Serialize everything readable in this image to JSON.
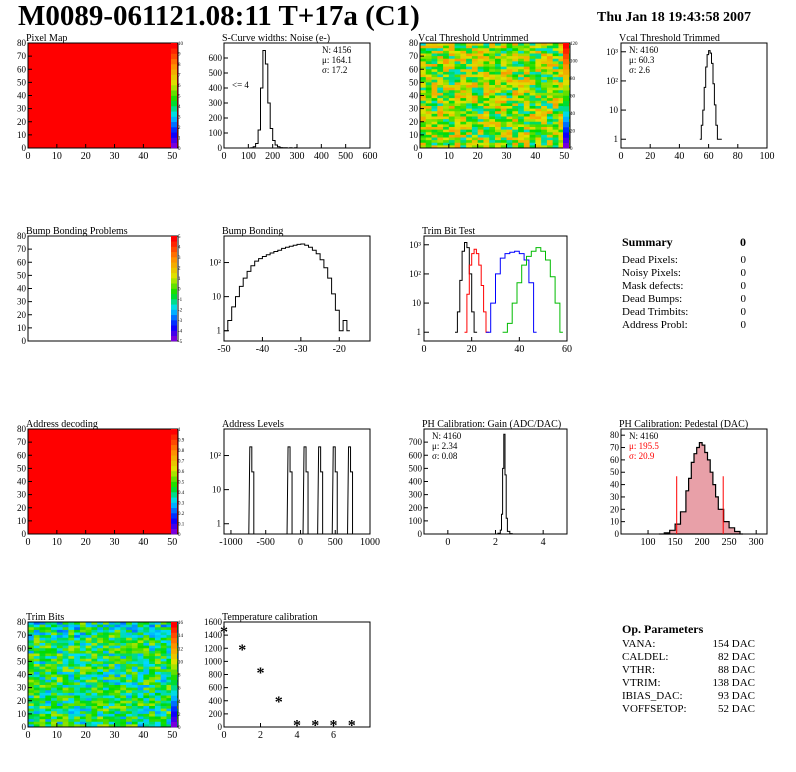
{
  "header": {
    "title": "M0089-061121.08:11 T+17a (C1)",
    "date": "Thu Jan 18 19:43:58 2007"
  },
  "colors": {
    "red": "#ff0000",
    "black": "#000000",
    "blue": "#0000ff",
    "green": "#00bb00",
    "pedestalFill": "#e8a0a8"
  },
  "chart_data": [
    {
      "id": "pixel-map",
      "type": "heatmap",
      "title": "Pixel Map",
      "xlim": [
        0,
        52
      ],
      "ylim": [
        0,
        80
      ],
      "xticks": [
        "0",
        "10",
        "20",
        "30",
        "40",
        "50"
      ],
      "yticks": [
        "0",
        "10",
        "20",
        "30",
        "40",
        "50",
        "60",
        "70",
        "80"
      ],
      "zticks": [
        "0",
        "1",
        "2",
        "3",
        "4",
        "5",
        "6",
        "7",
        "8",
        "9",
        "10"
      ],
      "fill": "uniform-max"
    },
    {
      "id": "scurve-noise",
      "type": "line",
      "title": "S-Curve widths: Noise (e-)",
      "xlim": [
        0,
        600
      ],
      "ylim": [
        0,
        700
      ],
      "xticks": [
        "0",
        "100",
        "200",
        "300",
        "400",
        "500",
        "600"
      ],
      "yticks": [
        "0",
        "100",
        "200",
        "300",
        "400",
        "500",
        "600"
      ],
      "stats": [
        "N: 4156",
        "μ: 164.1",
        "σ: 17.2"
      ],
      "annotation": "<= 4",
      "x": [
        100,
        110,
        120,
        130,
        140,
        150,
        160,
        170,
        180,
        190,
        200,
        210,
        220,
        230,
        240,
        250,
        260,
        270,
        280,
        290,
        300
      ],
      "y": [
        0,
        2,
        8,
        30,
        120,
        400,
        650,
        560,
        300,
        130,
        50,
        20,
        8,
        3,
        2,
        1,
        0,
        1,
        0,
        1,
        0
      ]
    },
    {
      "id": "vcal-untrimmed",
      "type": "heatmap",
      "title": "Vcal Threshold Untrimmed",
      "xlim": [
        0,
        52
      ],
      "ylim": [
        0,
        80
      ],
      "xticks": [
        "0",
        "10",
        "20",
        "30",
        "40",
        "50"
      ],
      "yticks": [
        "0",
        "10",
        "20",
        "30",
        "40",
        "50",
        "60",
        "70",
        "80"
      ],
      "zticks": [
        "0",
        "20",
        "40",
        "60",
        "80",
        "100",
        "120"
      ],
      "fill": "noise-around-70"
    },
    {
      "id": "vcal-trimmed",
      "type": "line",
      "title": "Vcal Threshold Trimmed",
      "log_y": true,
      "xlim": [
        0,
        100
      ],
      "ylim": [
        0.5,
        2000
      ],
      "xticks": [
        "0",
        "20",
        "40",
        "60",
        "80",
        "100"
      ],
      "yticks": [
        "1",
        "10",
        "10²",
        "10³"
      ],
      "stats": [
        "N: 4160",
        "μ: 60.3",
        "σ:  2.6"
      ],
      "x": [
        54,
        55,
        56,
        57,
        58,
        59,
        60,
        61,
        62,
        63,
        64,
        65,
        66,
        67
      ],
      "y": [
        1,
        3,
        10,
        60,
        300,
        800,
        1100,
        900,
        400,
        80,
        15,
        3,
        1,
        1
      ]
    },
    {
      "id": "bump-problems",
      "type": "heatmap",
      "title": "Bump Bonding Problems",
      "xlim": [
        0,
        52
      ],
      "ylim": [
        0,
        80
      ],
      "xticks": [],
      "yticks": [
        "0",
        "10",
        "20",
        "30",
        "40",
        "50",
        "60",
        "70",
        "80"
      ],
      "zticks": [
        "-5",
        "-4",
        "-3",
        "-2",
        "-1",
        "0",
        "1",
        "2",
        "3",
        "4",
        "5"
      ],
      "fill": "empty"
    },
    {
      "id": "bump-bonding",
      "type": "line",
      "title": "Bump Bonding",
      "log_y": true,
      "xlim": [
        -50,
        -12
      ],
      "ylim": [
        0.5,
        600
      ],
      "xticks": [
        "-50",
        "-40",
        "-30",
        "-20"
      ],
      "yticks": [
        "1",
        "10",
        "10²"
      ],
      "x": [
        -50,
        -49,
        -48,
        -47,
        -46,
        -45,
        -44,
        -43,
        -42,
        -41,
        -40,
        -39,
        -38,
        -37,
        -36,
        -35,
        -34,
        -33,
        -32,
        -31,
        -30,
        -29,
        -28,
        -27,
        -26,
        -25,
        -24,
        -23,
        -22,
        -21,
        -20,
        -19,
        -18
      ],
      "y": [
        1,
        2,
        5,
        10,
        20,
        35,
        55,
        80,
        110,
        130,
        150,
        170,
        190,
        210,
        230,
        260,
        280,
        300,
        320,
        340,
        350,
        320,
        280,
        230,
        180,
        120,
        70,
        35,
        12,
        4,
        1,
        2,
        1
      ]
    },
    {
      "id": "trim-bit-test",
      "type": "line",
      "title": "Trim Bit Test",
      "log_y": true,
      "xlim": [
        0,
        60
      ],
      "ylim": [
        0.5,
        2000
      ],
      "xticks": [
        "0",
        "20",
        "40",
        "60"
      ],
      "yticks": [
        "1",
        "10",
        "10²",
        "10³"
      ],
      "series": [
        {
          "color": "#000000",
          "x": [
            13,
            14,
            15,
            16,
            17,
            18,
            19,
            20,
            21
          ],
          "y": [
            1,
            5,
            60,
            600,
            1200,
            800,
            100,
            5,
            1
          ]
        },
        {
          "color": "#ff0000",
          "x": [
            17,
            18,
            19,
            20,
            21,
            22,
            23,
            24,
            25,
            26
          ],
          "y": [
            1,
            20,
            200,
            500,
            700,
            500,
            200,
            40,
            5,
            1
          ]
        },
        {
          "color": "#0000ff",
          "x": [
            26,
            28,
            30,
            32,
            34,
            36,
            38,
            40,
            42,
            44,
            46
          ],
          "y": [
            1,
            10,
            100,
            350,
            500,
            550,
            600,
            500,
            300,
            50,
            1
          ]
        },
        {
          "color": "#00bb00",
          "x": [
            33,
            35,
            37,
            39,
            41,
            43,
            45,
            47,
            49,
            51,
            53,
            55,
            57
          ],
          "y": [
            1,
            2,
            10,
            50,
            200,
            400,
            600,
            800,
            600,
            300,
            80,
            10,
            1
          ]
        }
      ]
    },
    {
      "id": "address-decoding",
      "type": "heatmap",
      "title": "Address decoding",
      "xlim": [
        0,
        52
      ],
      "ylim": [
        0,
        80
      ],
      "xticks": [
        "0",
        "10",
        "20",
        "30",
        "40",
        "50"
      ],
      "yticks": [
        "0",
        "10",
        "20",
        "30",
        "40",
        "50",
        "60",
        "70",
        "80"
      ],
      "zticks": [
        "0",
        "0.1",
        "0.2",
        "0.3",
        "0.4",
        "0.5",
        "0.6",
        "0.7",
        "0.8",
        "0.9",
        "1"
      ],
      "fill": "uniform-max"
    },
    {
      "id": "address-levels",
      "type": "line",
      "title": "Address Levels",
      "log_y": true,
      "xlim": [
        -1100,
        1000
      ],
      "ylim": [
        0.5,
        600
      ],
      "xticks": [
        "-1000",
        "-500",
        "0",
        "500",
        "1000"
      ],
      "yticks": [
        "1",
        "10",
        "10²"
      ],
      "peaks": [
        -700,
        -150,
        80,
        290,
        500,
        720
      ],
      "peak_height": 180
    },
    {
      "id": "ph-gain",
      "type": "line",
      "title": "PH Calibration: Gain (ADC/DAC)",
      "xlim": [
        -1,
        5
      ],
      "ylim": [
        0,
        800
      ],
      "xticks": [
        "0",
        "2",
        "4"
      ],
      "yticks": [
        "0",
        "100",
        "200",
        "300",
        "400",
        "500",
        "600",
        "700"
      ],
      "stats": [
        "N: 4160",
        "μ: 2.34",
        "σ: 0.08"
      ],
      "x": [
        2.0,
        2.1,
        2.2,
        2.25,
        2.3,
        2.35,
        2.4,
        2.45,
        2.5,
        2.6,
        2.7
      ],
      "y": [
        0,
        5,
        30,
        150,
        500,
        760,
        450,
        120,
        20,
        3,
        0
      ]
    },
    {
      "id": "ph-pedestal",
      "type": "line",
      "title": "PH Calibration: Pedestal (DAC)",
      "xlim": [
        50,
        320
      ],
      "ylim": [
        0,
        85
      ],
      "xticks": [
        "100",
        "150",
        "200",
        "250",
        "300"
      ],
      "yticks": [
        "0",
        "10",
        "20",
        "30",
        "40",
        "50",
        "60",
        "70",
        "80"
      ],
      "stats": [
        "N: 4160",
        "μ: 195.5",
        "σ: 20.9"
      ],
      "cut_lines": [
        153,
        239
      ],
      "x": [
        120,
        130,
        140,
        150,
        160,
        170,
        175,
        180,
        185,
        190,
        195,
        200,
        205,
        210,
        215,
        220,
        225,
        230,
        240,
        250,
        260,
        270
      ],
      "y": [
        0,
        1,
        3,
        8,
        18,
        35,
        45,
        58,
        65,
        70,
        74,
        72,
        66,
        60,
        50,
        40,
        30,
        20,
        10,
        5,
        2,
        0
      ]
    },
    {
      "id": "trim-bits",
      "type": "heatmap",
      "title": "Trim Bits",
      "xlim": [
        0,
        52
      ],
      "ylim": [
        0,
        80
      ],
      "xticks": [
        "0",
        "10",
        "20",
        "30",
        "40",
        "50"
      ],
      "yticks": [
        "0",
        "10",
        "20",
        "30",
        "40",
        "50",
        "60",
        "70",
        "80"
      ],
      "zticks": [
        "0",
        "2",
        "4",
        "6",
        "8",
        "10",
        "12",
        "14",
        "16"
      ],
      "fill": "noise-around-9"
    },
    {
      "id": "temperature-calibration",
      "type": "scatter",
      "title": "Temperature calibration",
      "xlim": [
        0,
        8
      ],
      "ylim": [
        0,
        1600
      ],
      "xticks": [
        "0",
        "2",
        "4",
        "6"
      ],
      "yticks": [
        "0",
        "200",
        "400",
        "600",
        "800",
        "1000",
        "1200",
        "1400",
        "1600"
      ],
      "x": [
        0,
        1,
        2,
        3,
        4,
        5,
        6,
        7
      ],
      "y": [
        1450,
        1170,
        820,
        380,
        20,
        20,
        20,
        20
      ]
    }
  ],
  "summary": {
    "title": "Summary",
    "total": "0",
    "rows": [
      {
        "label": "Dead Pixels:",
        "value": "0"
      },
      {
        "label": "Noisy Pixels:",
        "value": "0"
      },
      {
        "label": "Mask defects:",
        "value": "0"
      },
      {
        "label": "Dead Bumps:",
        "value": "0"
      },
      {
        "label": "Dead Trimbits:",
        "value": "0"
      },
      {
        "label": "Address Probl:",
        "value": "0"
      }
    ]
  },
  "op_parameters": {
    "title": "Op. Parameters",
    "rows": [
      {
        "label": "VANA:",
        "value": "154 DAC"
      },
      {
        "label": "CALDEL:",
        "value": "82 DAC"
      },
      {
        "label": "VTHR:",
        "value": "88 DAC"
      },
      {
        "label": "VTRIM:",
        "value": "138 DAC"
      },
      {
        "label": "IBIAS_DAC:",
        "value": "93 DAC"
      },
      {
        "label": "VOFFSETOP:",
        "value": "52 DAC"
      }
    ]
  }
}
